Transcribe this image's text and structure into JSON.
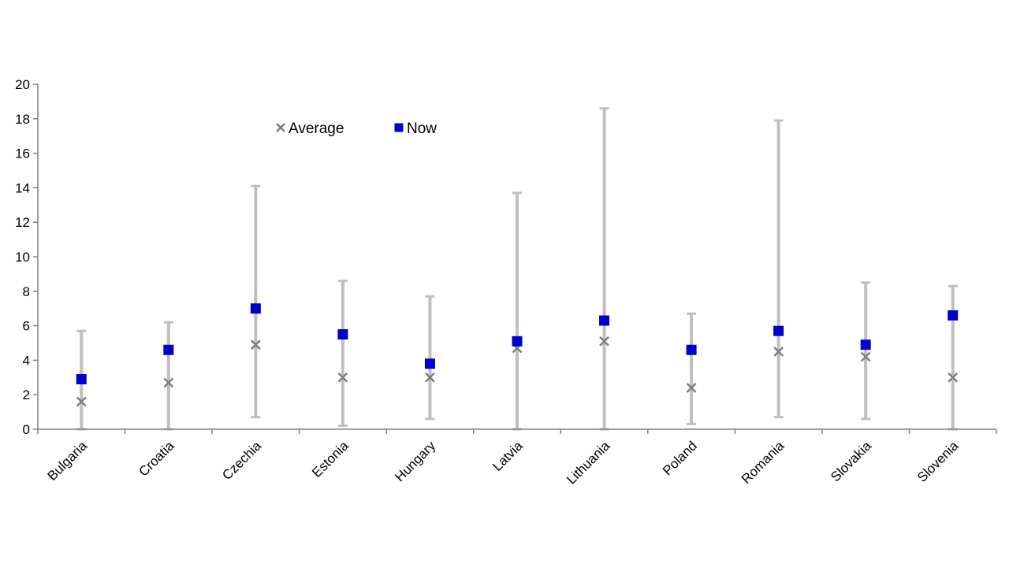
{
  "chart_data": {
    "type": "scatter",
    "title": "",
    "xlabel": "",
    "ylabel": "",
    "ylim": [
      0,
      20
    ],
    "yticks": [
      "0",
      "2",
      "4",
      "6",
      "8",
      "10",
      "12",
      "14",
      "16",
      "18",
      "20"
    ],
    "grid": false,
    "legend": {
      "placement": "top-left",
      "items": [
        {
          "label": "Average",
          "marker": "x"
        },
        {
          "label": "Now",
          "marker": "square"
        }
      ]
    },
    "categories": [
      "Bulgaria",
      "Croatia",
      "Czechia",
      "Estonia",
      "Hungary",
      "Latvia",
      "Lithuania",
      "Poland",
      "Romania",
      "Slovakia",
      "Slovenia"
    ],
    "range_min": [
      0.0,
      0.0,
      0.7,
      0.2,
      0.6,
      0.0,
      0.0,
      0.3,
      0.7,
      0.6,
      0.0
    ],
    "range_max": [
      5.7,
      6.2,
      14.1,
      8.6,
      7.7,
      13.7,
      18.6,
      6.7,
      17.9,
      8.5,
      8.3
    ],
    "series": [
      {
        "name": "Average",
        "values": [
          1.6,
          2.7,
          4.9,
          3.0,
          3.0,
          4.7,
          5.1,
          2.4,
          4.5,
          4.2,
          3.0
        ]
      },
      {
        "name": "Now",
        "values": [
          2.9,
          4.6,
          7.0,
          5.5,
          3.8,
          5.1,
          6.3,
          4.6,
          5.7,
          4.9,
          6.6
        ]
      }
    ],
    "colors": {
      "range": "#bfbfbf",
      "average": "#7f7f7f",
      "now": "#0000cc",
      "axis": "#808080"
    }
  }
}
